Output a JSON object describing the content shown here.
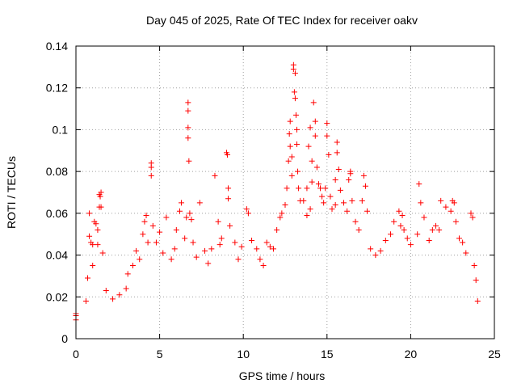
{
  "chart_data": {
    "type": "scatter",
    "title": "Day 045 of 2025, Rate Of TEC Index for receiver oakv",
    "xlabel": "GPS time / hours",
    "ylabel": "ROTI / TECUs",
    "xlim": [
      0,
      25
    ],
    "ylim": [
      0,
      0.14
    ],
    "x_ticks": [
      0,
      5,
      10,
      15,
      20,
      25
    ],
    "y_ticks": [
      0,
      0.02,
      0.04,
      0.06,
      0.08,
      0.1,
      0.12,
      0.14
    ],
    "x_tick_labels": [
      "0",
      "5",
      "10",
      "15",
      "20",
      "25"
    ],
    "y_tick_labels": [
      "0",
      "0.02",
      "0.04",
      "0.06",
      "0.08",
      "0.1",
      "0.12",
      "0.14"
    ],
    "grid": true,
    "marker": "+",
    "color": "#ff0000",
    "series": [
      {
        "name": "ROTI",
        "points": [
          [
            0.0,
            0.011
          ],
          [
            0.0,
            0.009
          ],
          [
            0.0,
            0.012
          ],
          [
            0.6,
            0.018
          ],
          [
            0.7,
            0.029
          ],
          [
            0.8,
            0.049
          ],
          [
            0.8,
            0.06
          ],
          [
            0.9,
            0.046
          ],
          [
            1.0,
            0.045
          ],
          [
            1.0,
            0.035
          ],
          [
            1.1,
            0.056
          ],
          [
            1.2,
            0.055
          ],
          [
            1.3,
            0.052
          ],
          [
            1.3,
            0.045
          ],
          [
            1.4,
            0.063
          ],
          [
            1.4,
            0.069
          ],
          [
            1.5,
            0.07
          ],
          [
            1.45,
            0.068
          ],
          [
            1.5,
            0.063
          ],
          [
            1.6,
            0.041
          ],
          [
            1.8,
            0.023
          ],
          [
            2.2,
            0.019
          ],
          [
            2.6,
            0.021
          ],
          [
            3.0,
            0.024
          ],
          [
            3.1,
            0.031
          ],
          [
            3.4,
            0.035
          ],
          [
            3.6,
            0.042
          ],
          [
            3.8,
            0.038
          ],
          [
            4.0,
            0.05
          ],
          [
            4.1,
            0.056
          ],
          [
            4.2,
            0.059
          ],
          [
            4.3,
            0.046
          ],
          [
            4.5,
            0.084
          ],
          [
            4.5,
            0.082
          ],
          [
            4.5,
            0.078
          ],
          [
            4.6,
            0.054
          ],
          [
            4.8,
            0.046
          ],
          [
            5.0,
            0.051
          ],
          [
            5.2,
            0.041
          ],
          [
            5.4,
            0.058
          ],
          [
            5.7,
            0.038
          ],
          [
            5.9,
            0.043
          ],
          [
            6.0,
            0.052
          ],
          [
            6.2,
            0.061
          ],
          [
            6.3,
            0.065
          ],
          [
            6.5,
            0.048
          ],
          [
            6.6,
            0.058
          ],
          [
            6.7,
            0.113
          ],
          [
            6.7,
            0.109
          ],
          [
            6.7,
            0.101
          ],
          [
            6.7,
            0.096
          ],
          [
            6.75,
            0.085
          ],
          [
            6.8,
            0.06
          ],
          [
            6.9,
            0.057
          ],
          [
            7.0,
            0.046
          ],
          [
            7.2,
            0.039
          ],
          [
            7.4,
            0.065
          ],
          [
            7.7,
            0.042
          ],
          [
            7.9,
            0.036
          ],
          [
            8.1,
            0.043
          ],
          [
            8.3,
            0.078
          ],
          [
            8.5,
            0.056
          ],
          [
            8.6,
            0.045
          ],
          [
            8.7,
            0.048
          ],
          [
            9.0,
            0.089
          ],
          [
            9.05,
            0.088
          ],
          [
            9.1,
            0.072
          ],
          [
            9.1,
            0.067
          ],
          [
            9.2,
            0.054
          ],
          [
            9.5,
            0.046
          ],
          [
            9.7,
            0.038
          ],
          [
            9.9,
            0.044
          ],
          [
            10.2,
            0.062
          ],
          [
            10.3,
            0.06
          ],
          [
            10.5,
            0.047
          ],
          [
            10.8,
            0.043
          ],
          [
            11.0,
            0.038
          ],
          [
            11.2,
            0.035
          ],
          [
            11.4,
            0.046
          ],
          [
            11.6,
            0.044
          ],
          [
            11.8,
            0.043
          ],
          [
            12.0,
            0.052
          ],
          [
            12.2,
            0.058
          ],
          [
            12.3,
            0.06
          ],
          [
            12.5,
            0.064
          ],
          [
            12.6,
            0.072
          ],
          [
            12.7,
            0.085
          ],
          [
            12.75,
            0.098
          ],
          [
            12.8,
            0.104
          ],
          [
            12.8,
            0.092
          ],
          [
            12.9,
            0.087
          ],
          [
            12.9,
            0.078
          ],
          [
            13.0,
            0.131
          ],
          [
            13.0,
            0.129
          ],
          [
            13.05,
            0.118
          ],
          [
            13.1,
            0.127
          ],
          [
            13.1,
            0.115
          ],
          [
            13.15,
            0.107
          ],
          [
            13.2,
            0.1
          ],
          [
            13.2,
            0.093
          ],
          [
            13.25,
            0.08
          ],
          [
            13.3,
            0.072
          ],
          [
            13.4,
            0.066
          ],
          [
            13.6,
            0.066
          ],
          [
            13.8,
            0.059
          ],
          [
            13.8,
            0.072
          ],
          [
            13.9,
            0.092
          ],
          [
            14.0,
            0.101
          ],
          [
            14.0,
            0.062
          ],
          [
            14.1,
            0.085
          ],
          [
            14.1,
            0.075
          ],
          [
            14.2,
            0.113
          ],
          [
            14.3,
            0.104
          ],
          [
            14.3,
            0.097
          ],
          [
            14.4,
            0.082
          ],
          [
            14.5,
            0.074
          ],
          [
            14.6,
            0.072
          ],
          [
            14.7,
            0.068
          ],
          [
            14.8,
            0.065
          ],
          [
            14.9,
            0.072
          ],
          [
            15.0,
            0.103
          ],
          [
            15.0,
            0.097
          ],
          [
            15.1,
            0.088
          ],
          [
            15.2,
            0.068
          ],
          [
            15.3,
            0.062
          ],
          [
            15.5,
            0.064
          ],
          [
            15.5,
            0.076
          ],
          [
            15.6,
            0.094
          ],
          [
            15.6,
            0.089
          ],
          [
            15.7,
            0.081
          ],
          [
            15.8,
            0.071
          ],
          [
            16.0,
            0.065
          ],
          [
            16.2,
            0.061
          ],
          [
            16.3,
            0.076
          ],
          [
            16.4,
            0.08
          ],
          [
            16.4,
            0.079
          ],
          [
            16.5,
            0.066
          ],
          [
            16.7,
            0.056
          ],
          [
            16.9,
            0.052
          ],
          [
            17.1,
            0.066
          ],
          [
            17.2,
            0.078
          ],
          [
            17.3,
            0.073
          ],
          [
            17.4,
            0.061
          ],
          [
            17.6,
            0.043
          ],
          [
            17.9,
            0.04
          ],
          [
            18.2,
            0.042
          ],
          [
            18.5,
            0.047
          ],
          [
            18.8,
            0.05
          ],
          [
            19.0,
            0.056
          ],
          [
            19.3,
            0.061
          ],
          [
            19.4,
            0.054
          ],
          [
            19.5,
            0.059
          ],
          [
            19.6,
            0.052
          ],
          [
            19.8,
            0.048
          ],
          [
            20.0,
            0.045
          ],
          [
            20.4,
            0.05
          ],
          [
            20.5,
            0.074
          ],
          [
            20.6,
            0.065
          ],
          [
            20.8,
            0.058
          ],
          [
            21.1,
            0.047
          ],
          [
            21.3,
            0.052
          ],
          [
            21.5,
            0.054
          ],
          [
            21.7,
            0.052
          ],
          [
            21.8,
            0.066
          ],
          [
            22.1,
            0.063
          ],
          [
            22.4,
            0.061
          ],
          [
            22.5,
            0.066
          ],
          [
            22.6,
            0.065
          ],
          [
            22.7,
            0.056
          ],
          [
            22.9,
            0.048
          ],
          [
            23.1,
            0.046
          ],
          [
            23.3,
            0.041
          ],
          [
            23.6,
            0.06
          ],
          [
            23.7,
            0.058
          ],
          [
            23.8,
            0.035
          ],
          [
            23.9,
            0.028
          ],
          [
            24.0,
            0.018
          ]
        ]
      }
    ]
  }
}
